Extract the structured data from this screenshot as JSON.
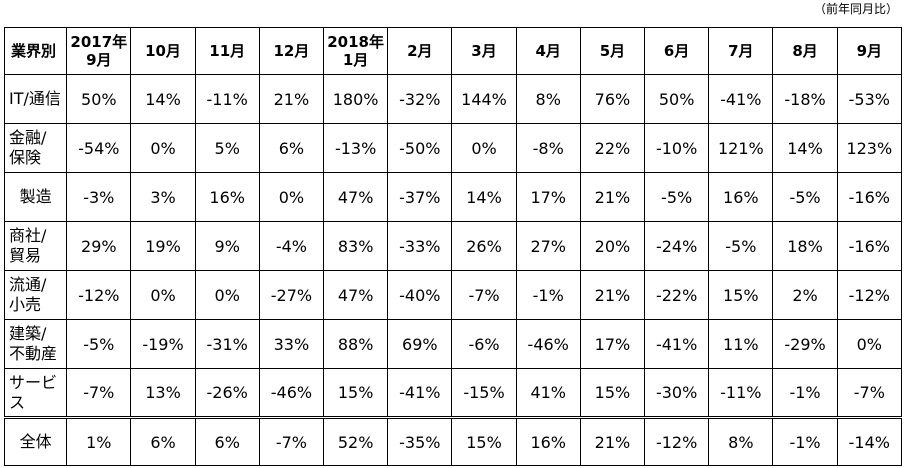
{
  "note": "（前年同月比）",
  "table": {
    "corner": "業界別",
    "columns": [
      "2017年\n9月",
      "10月",
      "11月",
      "12月",
      "2018年\n1月",
      "2月",
      "3月",
      "4月",
      "5月",
      "6月",
      "7月",
      "8月",
      "9月"
    ],
    "rows": [
      {
        "label": "IT/通信",
        "values": [
          "50%",
          "14%",
          "-11%",
          "21%",
          "180%",
          "-32%",
          "144%",
          "8%",
          "76%",
          "50%",
          "-41%",
          "-18%",
          "-53%"
        ]
      },
      {
        "label": "金融/\n保険",
        "values": [
          "-54%",
          "0%",
          "5%",
          "6%",
          "-13%",
          "-50%",
          "0%",
          "-8%",
          "22%",
          "-10%",
          "121%",
          "14%",
          "123%"
        ]
      },
      {
        "label": "製造",
        "values": [
          "-3%",
          "3%",
          "16%",
          "0%",
          "47%",
          "-37%",
          "14%",
          "17%",
          "21%",
          "-5%",
          "16%",
          "-5%",
          "-16%"
        ]
      },
      {
        "label": "商社/\n貿易",
        "values": [
          "29%",
          "19%",
          "9%",
          "-4%",
          "83%",
          "-33%",
          "26%",
          "27%",
          "20%",
          "-24%",
          "-5%",
          "18%",
          "-16%"
        ]
      },
      {
        "label": "流通/\n小売",
        "values": [
          "-12%",
          "0%",
          "0%",
          "-27%",
          "47%",
          "-40%",
          "-7%",
          "-1%",
          "21%",
          "-22%",
          "15%",
          "2%",
          "-12%"
        ]
      },
      {
        "label": "建築/\n不動産",
        "values": [
          "-5%",
          "-19%",
          "-31%",
          "33%",
          "88%",
          "69%",
          "-6%",
          "-46%",
          "17%",
          "-41%",
          "11%",
          "-29%",
          "0%"
        ]
      },
      {
        "label": "サービ\nス",
        "values": [
          "-7%",
          "13%",
          "-26%",
          "-46%",
          "15%",
          "-41%",
          "-15%",
          "41%",
          "15%",
          "-30%",
          "-11%",
          "-1%",
          "-7%"
        ]
      }
    ],
    "total": {
      "label": "全体",
      "values": [
        "1%",
        "6%",
        "6%",
        "-7%",
        "52%",
        "-35%",
        "15%",
        "16%",
        "21%",
        "-12%",
        "8%",
        "-1%",
        "-14%"
      ]
    }
  }
}
